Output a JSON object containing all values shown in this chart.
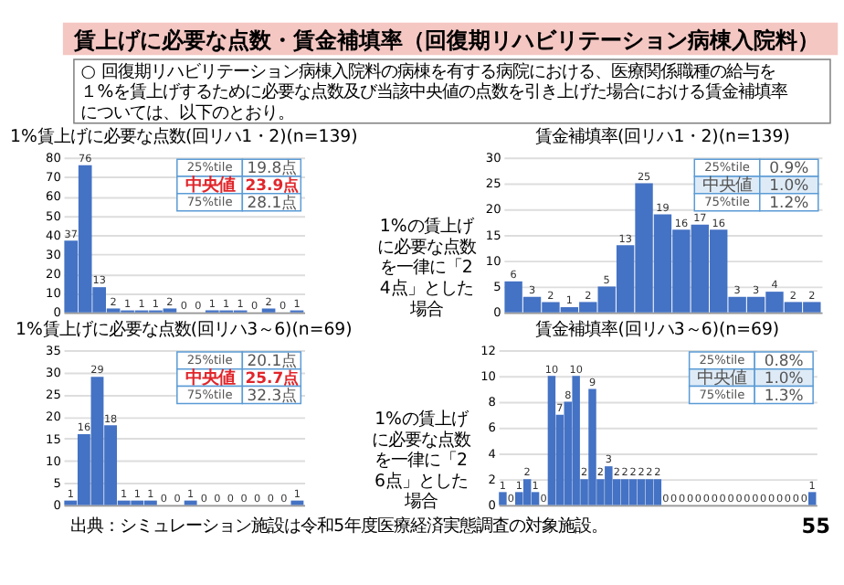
{
  "chart_data": [
    {
      "type": "other",
      "title": "賃上げに必要な点数・賃金補填率（回復期リハビリテーション病棟入院料）",
      "subtitle": "○ 回復期リハビリテーション病棟入院料の病棟を有する病院における、医療関係職種の給与を１%を賃上げするために必要な点数及び当該中央値の点数を引き上げた場合における賃金補填率については、以下のとおり。",
      "annotations": [
        "出典：シミュレーション施設は令和5年度医療経済実態調査の対象施設。",
        "55"
      ]
    },
    {
      "type": "bar",
      "title": "1%賃上げに必要な点数(回リハ1・2)(n=139)",
      "categories": [
        null,
        null,
        null,
        null,
        null,
        null,
        null,
        null,
        null,
        null,
        null,
        null,
        null,
        null,
        null,
        null,
        null
      ],
      "values": [
        37,
        76,
        13,
        2,
        1,
        1,
        1,
        2,
        0,
        0,
        1,
        1,
        1,
        0,
        2,
        0,
        1
      ],
      "color": "#4472c4",
      "ylim": [
        0,
        80
      ],
      "yticks": [
        0,
        10,
        20,
        30,
        40,
        50,
        60,
        70,
        80
      ],
      "grid": "y",
      "data_labels": true,
      "annotations": [
        "25%tile",
        "19.8点",
        "中央値",
        "23.9点",
        "75%tile",
        "28.1点"
      ]
    },
    {
      "type": "bar",
      "title": "賃金補填率(回リハ1・2)(n=139)",
      "categories": [
        null,
        null,
        null,
        null,
        null,
        null,
        null,
        null,
        null,
        null,
        null,
        null,
        null,
        null,
        null,
        null,
        null
      ],
      "values": [
        6,
        3,
        2,
        1,
        2,
        5,
        13,
        25,
        19,
        16,
        17,
        16,
        3,
        3,
        4,
        2,
        2
      ],
      "color": "#4472c4",
      "ylim": [
        0,
        30
      ],
      "yticks": [
        0,
        5,
        10,
        15,
        20,
        25,
        30
      ],
      "grid": "y",
      "data_labels": true,
      "annotations": [
        "25%tile",
        "0.9%",
        "中央値",
        "1.0%",
        "75%tile",
        "1.2%",
        "1%の賃上げに必要な点数を一律に「24点」とした場合"
      ]
    },
    {
      "type": "bar",
      "title": "1%賃上げに必要な点数(回リハ3～6)(n=69)",
      "categories": [
        null,
        null,
        null,
        null,
        null,
        null,
        null,
        null,
        null,
        null,
        null,
        null,
        null,
        null,
        null,
        null,
        null,
        null
      ],
      "values": [
        1,
        16,
        29,
        18,
        1,
        1,
        1,
        0,
        0,
        1,
        0,
        0,
        0,
        0,
        0,
        0,
        0,
        1
      ],
      "color": "#4472c4",
      "ylim": [
        0,
        35
      ],
      "yticks": [
        0,
        5,
        10,
        15,
        20,
        25,
        30,
        35
      ],
      "grid": "y",
      "data_labels": true,
      "annotations": [
        "25%tile",
        "20.1点",
        "中央値",
        "25.7点",
        "75%tile",
        "32.3点"
      ]
    },
    {
      "type": "bar",
      "title": "賃金補填率(回リハ3～6)(n=69)",
      "categories": [
        null,
        null,
        null,
        null,
        null,
        null,
        null,
        null,
        null,
        null,
        null,
        null,
        null,
        null,
        null,
        null,
        null,
        null,
        null,
        null,
        null,
        null,
        null,
        null,
        null,
        null,
        null,
        null,
        null,
        null,
        null,
        null,
        null,
        null,
        null,
        null,
        null,
        null,
        null
      ],
      "values": [
        1,
        0,
        1,
        2,
        1,
        0,
        10,
        7,
        8,
        10,
        2,
        9,
        2,
        3,
        2,
        2,
        2,
        2,
        2,
        2,
        0,
        0,
        0,
        0,
        0,
        0,
        0,
        0,
        0,
        0,
        0,
        0,
        0,
        0,
        0,
        0,
        0,
        0,
        1
      ],
      "color": "#4472c4",
      "ylim": [
        0,
        12
      ],
      "yticks": [
        0,
        2,
        4,
        6,
        8,
        10,
        12
      ],
      "grid": "y",
      "data_labels": true,
      "annotations": [
        "25%tile",
        "0.8%",
        "中央値",
        "1.0%",
        "75%tile",
        "1.3%",
        "1%の賃上げに必要な点数を一律に「26点」とした場合"
      ]
    }
  ]
}
